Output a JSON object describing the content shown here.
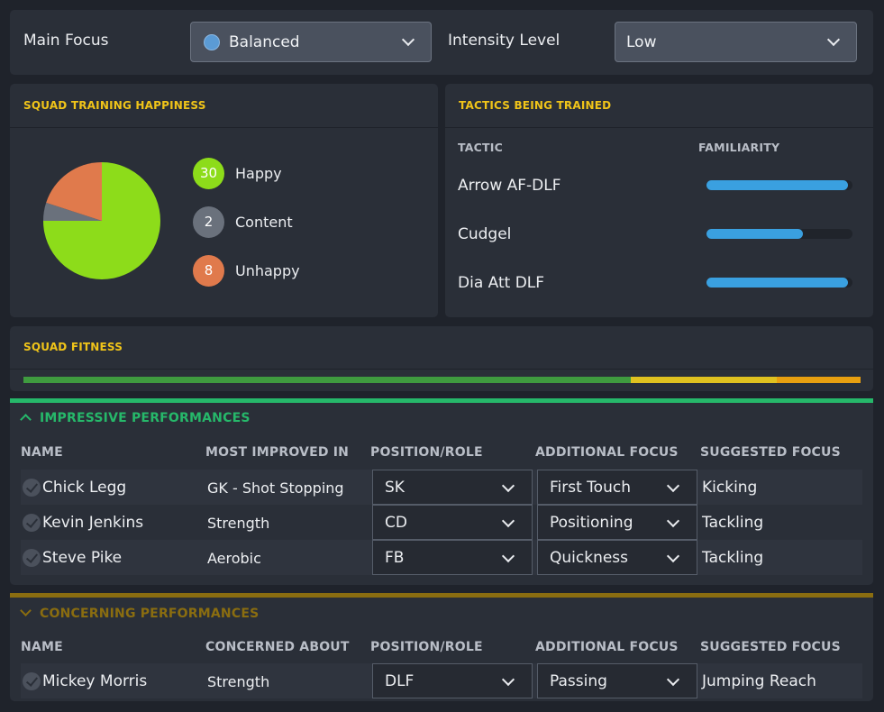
{
  "top_bar": {
    "main_focus_label": "Main Focus",
    "main_focus_value": "Balanced",
    "intensity_label": "Intensity Level",
    "intensity_value": "Low"
  },
  "happiness": {
    "title": "SQUAD TRAINING HAPPINESS",
    "items": [
      {
        "count": "30",
        "label": "Happy",
        "color": "#8ddc1a"
      },
      {
        "count": "2",
        "label": "Content",
        "color": "#6a717c"
      },
      {
        "count": "8",
        "label": "Unhappy",
        "color": "#e07a4c"
      }
    ]
  },
  "chart_data": {
    "type": "pie",
    "categories": [
      "Happy",
      "Content",
      "Unhappy"
    ],
    "values": [
      30,
      2,
      8
    ],
    "colors": [
      "#8ddc1a",
      "#6a717c",
      "#e07a4c"
    ]
  },
  "tactics": {
    "title": "TACTICS BEING TRAINED",
    "col_tactic": "TACTIC",
    "col_familiarity": "FAMILIARITY",
    "rows": [
      {
        "name": "Arrow AF-DLF",
        "familiarity": 0.97
      },
      {
        "name": "Cudgel",
        "familiarity": 0.66
      },
      {
        "name": "Dia Att DLF",
        "familiarity": 0.97
      }
    ]
  },
  "fitness": {
    "title": "SQUAD FITNESS",
    "segments": [
      {
        "fraction": 0.725,
        "color": "#3f9b3f"
      },
      {
        "fraction": 0.175,
        "color": "#e0c220"
      },
      {
        "fraction": 0.1,
        "color": "#e8a010"
      }
    ]
  },
  "impressive": {
    "title": "IMPRESSIVE PERFORMANCES",
    "accent": "#26b86a",
    "headers": [
      "NAME",
      "MOST IMPROVED IN",
      "POSITION/ROLE",
      "ADDITIONAL FOCUS",
      "SUGGESTED FOCUS"
    ],
    "rows": [
      {
        "name": "Chick Legg",
        "detail": "GK - Shot Stopping",
        "position": "SK",
        "additional": "First Touch",
        "suggested": "Kicking"
      },
      {
        "name": "Kevin Jenkins",
        "detail": "Strength",
        "position": "CD",
        "additional": "Positioning",
        "suggested": "Tackling"
      },
      {
        "name": "Steve Pike",
        "detail": "Aerobic",
        "position": "FB",
        "additional": "Quickness",
        "suggested": "Tackling"
      }
    ]
  },
  "concerning": {
    "title": "CONCERNING PERFORMANCES",
    "accent": "#8a6d10",
    "headers": [
      "NAME",
      "CONCERNED ABOUT",
      "POSITION/ROLE",
      "ADDITIONAL FOCUS",
      "SUGGESTED FOCUS"
    ],
    "rows": [
      {
        "name": "Mickey Morris",
        "detail": "Strength",
        "position": "DLF",
        "additional": "Passing",
        "suggested": "Jumping Reach"
      }
    ]
  }
}
